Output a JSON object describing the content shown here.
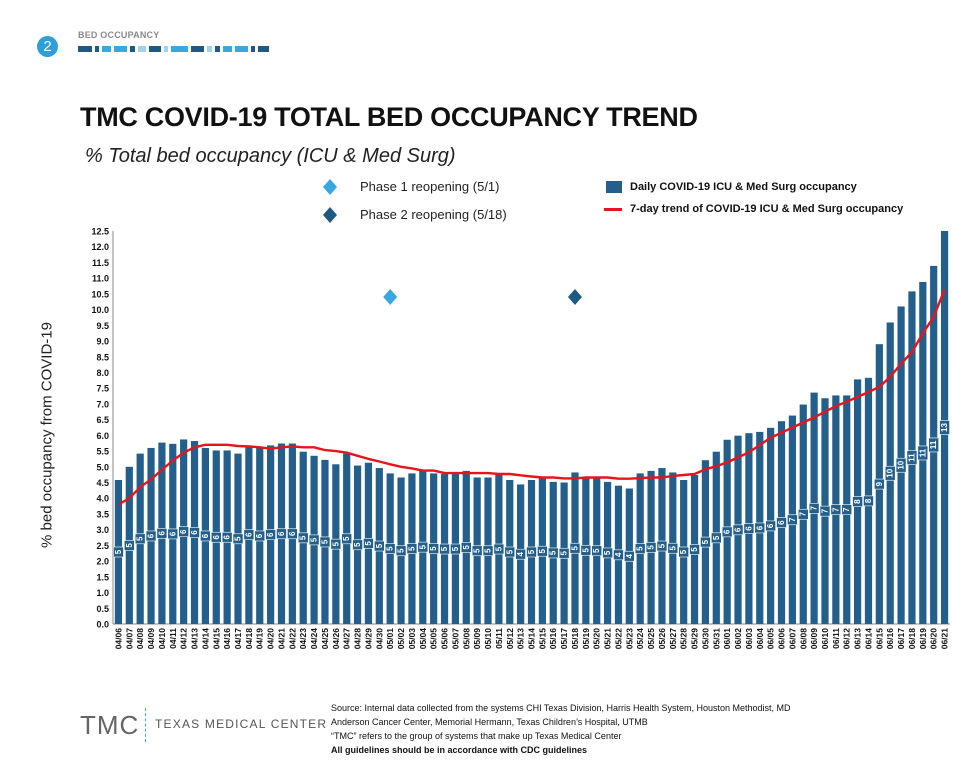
{
  "header": {
    "section_number": "2",
    "section_label": "BED OCCUPANCY",
    "strip_colors": [
      "#1f5a85",
      "#1f5a85",
      "#3aa8e0",
      "#3aa8e0",
      "#1f5a85",
      "#9fd3ea",
      "#1f5a85",
      "#9fd3ea",
      "#3aa8e0",
      "#1f5a85",
      "#9fd3ea",
      "#1f5a85",
      "#3aa8e0",
      "#3aa8e0",
      "#1f5a85",
      "#1f5a85"
    ]
  },
  "title": "TMC COVID-19 TOTAL BED OCCUPANCY TREND",
  "subtitle": "% Total bed occupancy (ICU & Med Surg)",
  "legend": {
    "phase1": "Phase 1 reopening (5/1)",
    "phase2": "Phase 2 reopening (5/18)",
    "bars": "Daily COVID-19 ICU & Med Surg occupancy",
    "trend": "7-day trend of COVID-19 ICU & Med Surg occupancy"
  },
  "footer": {
    "logo": "TMC",
    "logo_name": "TEXAS MEDICAL CENTER",
    "source1": "Source: Internal data collected from the systems CHI Texas Division, Harris Health System, Houston Methodist, MD",
    "source2": "Anderson Cancer Center, Memorial Hermann, Texas Children’s Hospital, UTMB",
    "source3": "“TMC” refers to the group of systems that make up Texas Medical Center",
    "source4": "All guidelines should be in accordance with CDC guidelines"
  },
  "chart_data": {
    "type": "bar",
    "ylabel": "% bed occupancy from COVID-19",
    "ylim": [
      0,
      12.5
    ],
    "yticks": [
      "0.0",
      "0.5",
      "1.0",
      "1.5",
      "2.0",
      "2.5",
      "3.0",
      "3.5",
      "4.0",
      "4.5",
      "5.0",
      "5.5",
      "6.0",
      "6.5",
      "7.0",
      "7.5",
      "8.0",
      "8.5",
      "9.0",
      "9.5",
      "10.0",
      "10.5",
      "11.0",
      "11.5",
      "12.0",
      "12.5"
    ],
    "colors": {
      "bar": "#235f8a",
      "trend": "#e8141c",
      "phase1": "#3aa8e0",
      "phase2": "#1f5a85"
    },
    "categories": [
      "04/06",
      "04/07",
      "04/08",
      "04/09",
      "04/10",
      "04/11",
      "04/12",
      "04/13",
      "04/14",
      "04/15",
      "04/16",
      "04/17",
      "04/18",
      "04/19",
      "04/20",
      "04/21",
      "04/22",
      "04/23",
      "04/24",
      "04/25",
      "04/26",
      "04/27",
      "04/28",
      "04/29",
      "04/30",
      "05/01",
      "05/02",
      "05/03",
      "05/04",
      "05/05",
      "05/06",
      "05/07",
      "05/08",
      "05/09",
      "05/10",
      "05/11",
      "05/12",
      "05/13",
      "05/14",
      "05/15",
      "05/16",
      "05/17",
      "05/18",
      "05/19",
      "05/20",
      "05/21",
      "05/22",
      "05/23",
      "05/24",
      "05/25",
      "05/26",
      "05/27",
      "05/28",
      "05/29",
      "05/30",
      "05/31",
      "06/01",
      "06/02",
      "06/03",
      "06/04",
      "06/05",
      "06/06",
      "06/07",
      "06/08",
      "06/09",
      "06/10",
      "06/11",
      "06/12",
      "06/13",
      "06/14",
      "06/15",
      "06/16",
      "06/17",
      "06/18",
      "06/19",
      "06/20",
      "06/21"
    ],
    "series": [
      {
        "name": "Daily COVID-19 ICU & Med Surg occupancy",
        "values": [
          4.58,
          5.0,
          5.42,
          5.6,
          5.77,
          5.73,
          5.87,
          5.82,
          5.6,
          5.52,
          5.52,
          5.42,
          5.68,
          5.6,
          5.68,
          5.74,
          5.74,
          5.48,
          5.35,
          5.22,
          5.08,
          5.42,
          5.04,
          5.13,
          4.96,
          4.79,
          4.66,
          4.79,
          4.89,
          4.79,
          4.77,
          4.77,
          4.87,
          4.66,
          4.66,
          4.77,
          4.58,
          4.44,
          4.58,
          4.63,
          4.52,
          4.5,
          4.82,
          4.69,
          4.66,
          4.52,
          4.4,
          4.31,
          4.79,
          4.87,
          4.96,
          4.82,
          4.58,
          4.74,
          5.21,
          5.48,
          5.86,
          5.99,
          6.07,
          6.11,
          6.24,
          6.45,
          6.63,
          6.98,
          7.36,
          7.18,
          7.27,
          7.27,
          7.78,
          7.83,
          8.9,
          9.59,
          10.1,
          10.58,
          10.88,
          11.39,
          12.5
        ],
        "labels": [
          "5",
          "5",
          "5",
          "6",
          "6",
          "6",
          "6",
          "6",
          "6",
          "6",
          "6",
          "5",
          "6",
          "6",
          "6",
          "6",
          "6",
          "5",
          "5",
          "5",
          "5",
          "5",
          "5",
          "5",
          "5",
          "5",
          "5",
          "5",
          "5",
          "5",
          "5",
          "5",
          "5",
          "5",
          "5",
          "5",
          "5",
          "4",
          "5",
          "5",
          "5",
          "5",
          "5",
          "5",
          "5",
          "5",
          "4",
          "4",
          "5",
          "5",
          "5",
          "5",
          "5",
          "5",
          "5",
          "5",
          "6",
          "6",
          "6",
          "6",
          "6",
          "6",
          "7",
          "7",
          "7",
          "7",
          "7",
          "7",
          "8",
          "8",
          "9",
          "10",
          "10",
          "11",
          "11",
          "11",
          "13"
        ]
      },
      {
        "name": "7-day trend of COVID-19 ICU & Med Surg occupancy",
        "type": "line",
        "values": [
          3.8,
          4.0,
          4.35,
          4.6,
          4.9,
          5.2,
          5.45,
          5.62,
          5.7,
          5.7,
          5.7,
          5.66,
          5.65,
          5.62,
          5.58,
          5.62,
          5.65,
          5.62,
          5.62,
          5.53,
          5.5,
          5.45,
          5.35,
          5.25,
          5.17,
          5.08,
          5.0,
          4.95,
          4.88,
          4.88,
          4.8,
          4.8,
          4.8,
          4.8,
          4.8,
          4.77,
          4.77,
          4.73,
          4.69,
          4.66,
          4.66,
          4.63,
          4.63,
          4.66,
          4.66,
          4.66,
          4.62,
          4.62,
          4.64,
          4.66,
          4.66,
          4.71,
          4.74,
          4.77,
          4.92,
          5.02,
          5.14,
          5.3,
          5.46,
          5.69,
          5.93,
          6.08,
          6.25,
          6.41,
          6.57,
          6.75,
          6.93,
          7.07,
          7.22,
          7.38,
          7.54,
          7.86,
          8.28,
          8.65,
          9.24,
          9.77,
          10.64
        ]
      }
    ],
    "markers": [
      {
        "name": "Phase 1 reopening (5/1)",
        "x": "05/01",
        "y": 10.4
      },
      {
        "name": "Phase 2 reopening (5/18)",
        "x": "05/18",
        "y": 10.4
      }
    ],
    "grid": false,
    "legend_position": "top"
  }
}
